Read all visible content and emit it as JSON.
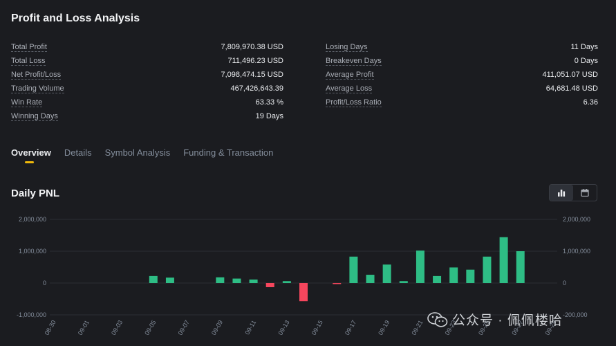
{
  "page": {
    "title": "Profit and Loss Analysis",
    "section_title": "Daily PNL"
  },
  "stats_left": [
    {
      "label": "Total Profit",
      "value": "7,809,970.38 USD"
    },
    {
      "label": "Total Loss",
      "value": "711,496.23 USD"
    },
    {
      "label": "Net Profit/Loss",
      "value": "7,098,474.15 USD"
    },
    {
      "label": "Trading Volume",
      "value": "467,426,643.39"
    },
    {
      "label": "Win Rate",
      "value": "63.33 %"
    },
    {
      "label": "Winning Days",
      "value": "19 Days"
    }
  ],
  "stats_right": [
    {
      "label": "Losing Days",
      "value": "11 Days"
    },
    {
      "label": "Breakeven Days",
      "value": "0 Days"
    },
    {
      "label": "Average Profit",
      "value": "411,051.07 USD"
    },
    {
      "label": "Average Loss",
      "value": "64,681.48 USD"
    },
    {
      "label": "Profit/Loss Ratio",
      "value": "6.36"
    }
  ],
  "tabs": [
    "Overview",
    "Details",
    "Symbol Analysis",
    "Funding & Transaction"
  ],
  "active_tab": "Overview",
  "view_toggle": {
    "icons": [
      "bar-chart-icon",
      "calendar-icon"
    ],
    "selected": "bar-chart-icon"
  },
  "watermark": {
    "text": "公众号 · 佩佩楼哈",
    "icon": "wechat-icon"
  },
  "colors": {
    "positive": "#2ebd85",
    "negative": "#f6465d",
    "accent": "#f0b90b",
    "background": "#1b1c20"
  },
  "chart_data": {
    "type": "bar",
    "x": [
      "08-30",
      "08-31",
      "09-01",
      "09-02",
      "09-03",
      "09-04",
      "09-05",
      "09-06",
      "09-07",
      "09-08",
      "09-09",
      "09-10",
      "09-11",
      "09-12",
      "09-13",
      "09-14",
      "09-15",
      "09-16",
      "09-17",
      "09-18",
      "09-19",
      "09-20",
      "09-21",
      "09-22",
      "09-23",
      "09-24",
      "09-25",
      "09-26",
      "09-27",
      "09-28",
      "09-29"
    ],
    "values": [
      0,
      0,
      0,
      0,
      0,
      0,
      220000,
      170000,
      0,
      0,
      180000,
      140000,
      110000,
      -130000,
      60000,
      -570000,
      0,
      -20000,
      830000,
      260000,
      580000,
      60000,
      1020000,
      220000,
      490000,
      420000,
      830000,
      1440000,
      1000000,
      0,
      0
    ],
    "tick_labels": [
      "08-30",
      "09-01",
      "09-03",
      "09-05",
      "09-07",
      "09-09",
      "09-11",
      "09-13",
      "09-15",
      "09-17",
      "09-19",
      "09-21",
      "09-23",
      "09-25",
      "09-27",
      "09-29"
    ],
    "y_ticks_left": [
      "2,000,000",
      "1,000,000",
      "0",
      "-1,000,000"
    ],
    "y_ticks_right": [
      "2,000,000",
      "1,000,000",
      "0",
      "-200,000"
    ],
    "ylim": [
      -1000000,
      2000000
    ],
    "grid": true,
    "title": "",
    "xlabel": "",
    "ylabel": ""
  }
}
